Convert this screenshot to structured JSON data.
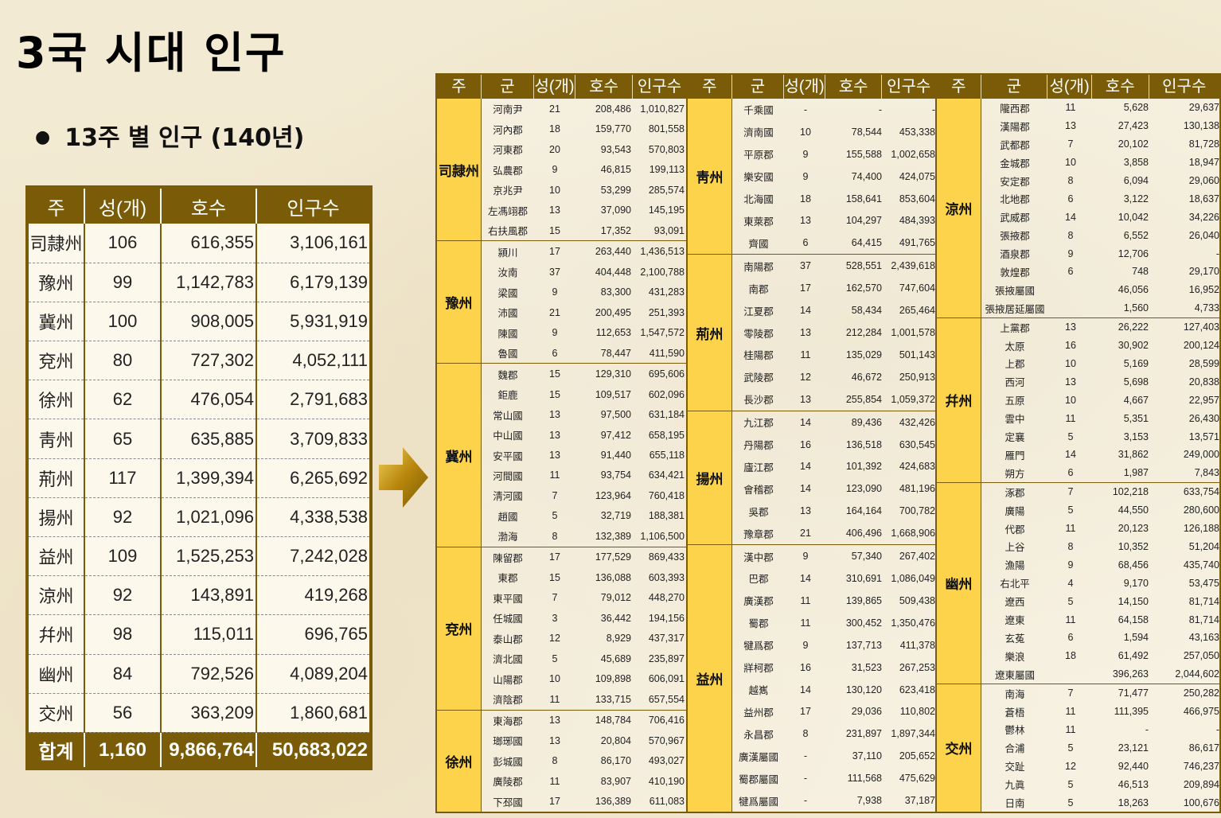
{
  "title": "3국 시대 인구",
  "subtitle": "13주 별 인구 (140년)",
  "summary": {
    "headers": [
      "주",
      "성(개)",
      "호수",
      "인구수"
    ],
    "rows": [
      [
        "司隷州",
        "106",
        "616,355",
        "3,106,161"
      ],
      [
        "豫州",
        "99",
        "1,142,783",
        "6,179,139"
      ],
      [
        "冀州",
        "100",
        "908,005",
        "5,931,919"
      ],
      [
        "兗州",
        "80",
        "727,302",
        "4,052,111"
      ],
      [
        "徐州",
        "62",
        "476,054",
        "2,791,683"
      ],
      [
        "靑州",
        "65",
        "635,885",
        "3,709,833"
      ],
      [
        "荊州",
        "117",
        "1,399,394",
        "6,265,692"
      ],
      [
        "揚州",
        "92",
        "1,021,096",
        "4,338,538"
      ],
      [
        "益州",
        "109",
        "1,525,253",
        "7,242,028"
      ],
      [
        "涼州",
        "92",
        "143,891",
        "419,268"
      ],
      [
        "幷州",
        "98",
        "115,011",
        "696,765"
      ],
      [
        "幽州",
        "84",
        "792,526",
        "4,089,204"
      ],
      [
        "交州",
        "56",
        "363,209",
        "1,860,681"
      ]
    ],
    "total": [
      "합계",
      "1,160",
      "9,866,764",
      "50,683,022"
    ]
  },
  "detail": {
    "headers": [
      "주",
      "군",
      "성(개)",
      "호수",
      "인구수"
    ],
    "columns": [
      [
        {
          "name": "司隷州",
          "rows": [
            [
              "河南尹",
              "21",
              "208,486",
              "1,010,827"
            ],
            [
              "河內郡",
              "18",
              "159,770",
              "801,558"
            ],
            [
              "河東郡",
              "20",
              "93,543",
              "570,803"
            ],
            [
              "弘農郡",
              "9",
              "46,815",
              "199,113"
            ],
            [
              "京兆尹",
              "10",
              "53,299",
              "285,574"
            ],
            [
              "左馮翊郡",
              "13",
              "37,090",
              "145,195"
            ],
            [
              "右扶風郡",
              "15",
              "17,352",
              "93,091"
            ]
          ]
        },
        {
          "name": "豫州",
          "rows": [
            [
              "潁川",
              "17",
              "263,440",
              "1,436,513"
            ],
            [
              "汝南",
              "37",
              "404,448",
              "2,100,788"
            ],
            [
              "梁國",
              "9",
              "83,300",
              "431,283"
            ],
            [
              "沛國",
              "21",
              "200,495",
              "251,393"
            ],
            [
              "陳國",
              "9",
              "112,653",
              "1,547,572"
            ],
            [
              "魯國",
              "6",
              "78,447",
              "411,590"
            ]
          ]
        },
        {
          "name": "冀州",
          "rows": [
            [
              "魏郡",
              "15",
              "129,310",
              "695,606"
            ],
            [
              "鉅鹿",
              "15",
              "109,517",
              "602,096"
            ],
            [
              "常山國",
              "13",
              "97,500",
              "631,184"
            ],
            [
              "中山國",
              "13",
              "97,412",
              "658,195"
            ],
            [
              "安平國",
              "13",
              "91,440",
              "655,118"
            ],
            [
              "河間國",
              "11",
              "93,754",
              "634,421"
            ],
            [
              "淸河國",
              "7",
              "123,964",
              "760,418"
            ],
            [
              "趙國",
              "5",
              "32,719",
              "188,381"
            ],
            [
              "渤海",
              "8",
              "132,389",
              "1,106,500"
            ]
          ]
        },
        {
          "name": "兗州",
          "rows": [
            [
              "陳留郡",
              "17",
              "177,529",
              "869,433"
            ],
            [
              "東郡",
              "15",
              "136,088",
              "603,393"
            ],
            [
              "東平國",
              "7",
              "79,012",
              "448,270"
            ],
            [
              "任城國",
              "3",
              "36,442",
              "194,156"
            ],
            [
              "泰山郡",
              "12",
              "8,929",
              "437,317"
            ],
            [
              "濟北國",
              "5",
              "45,689",
              "235,897"
            ],
            [
              "山陽郡",
              "10",
              "109,898",
              "606,091"
            ],
            [
              "濟陰郡",
              "11",
              "133,715",
              "657,554"
            ]
          ]
        },
        {
          "name": "徐州",
          "rows": [
            [
              "東海郡",
              "13",
              "148,784",
              "706,416"
            ],
            [
              "瑯琊國",
              "13",
              "20,804",
              "570,967"
            ],
            [
              "彭城國",
              "8",
              "86,170",
              "493,027"
            ],
            [
              "廣陵郡",
              "11",
              "83,907",
              "410,190"
            ],
            [
              "下邳國",
              "17",
              "136,389",
              "611,083"
            ]
          ]
        }
      ],
      [
        {
          "name": "靑州",
          "rows": [
            [
              "千乘國",
              "-",
              "-",
              "-"
            ],
            [
              "濟南國",
              "10",
              "78,544",
              "453,338"
            ],
            [
              "平原郡",
              "9",
              "155,588",
              "1,002,658"
            ],
            [
              "樂安國",
              "9",
              "74,400",
              "424,075"
            ],
            [
              "北海國",
              "18",
              "158,641",
              "853,604"
            ],
            [
              "東萊郡",
              "13",
              "104,297",
              "484,393"
            ],
            [
              "齊國",
              "6",
              "64,415",
              "491,765"
            ]
          ]
        },
        {
          "name": "荊州",
          "rows": [
            [
              "南陽郡",
              "37",
              "528,551",
              "2,439,618"
            ],
            [
              "南郡",
              "17",
              "162,570",
              "747,604"
            ],
            [
              "江夏郡",
              "14",
              "58,434",
              "265,464"
            ],
            [
              "零陵郡",
              "13",
              "212,284",
              "1,001,578"
            ],
            [
              "桂陽郡",
              "11",
              "135,029",
              "501,143"
            ],
            [
              "武陵郡",
              "12",
              "46,672",
              "250,913"
            ],
            [
              "長沙郡",
              "13",
              "255,854",
              "1,059,372"
            ]
          ]
        },
        {
          "name": "揚州",
          "rows": [
            [
              "九江郡",
              "14",
              "89,436",
              "432,426"
            ],
            [
              "丹陽郡",
              "16",
              "136,518",
              "630,545"
            ],
            [
              "廬江郡",
              "14",
              "101,392",
              "424,683"
            ],
            [
              "會稽郡",
              "14",
              "123,090",
              "481,196"
            ],
            [
              "吳郡",
              "13",
              "164,164",
              "700,782"
            ],
            [
              "豫章郡",
              "21",
              "406,496",
              "1,668,906"
            ]
          ]
        },
        {
          "name": "益州",
          "rows": [
            [
              "漢中郡",
              "9",
              "57,340",
              "267,402"
            ],
            [
              "巴郡",
              "14",
              "310,691",
              "1,086,049"
            ],
            [
              "廣漢郡",
              "11",
              "139,865",
              "509,438"
            ],
            [
              "蜀郡",
              "11",
              "300,452",
              "1,350,476"
            ],
            [
              "犍爲郡",
              "9",
              "137,713",
              "411,378"
            ],
            [
              "牂柯郡",
              "16",
              "31,523",
              "267,253"
            ],
            [
              "越嶲",
              "14",
              "130,120",
              "623,418"
            ],
            [
              "益州郡",
              "17",
              "29,036",
              "110,802"
            ],
            [
              "永昌郡",
              "8",
              "231,897",
              "1,897,344"
            ],
            [
              "廣漢屬國",
              "-",
              "37,110",
              "205,652"
            ],
            [
              "蜀郡屬國",
              "-",
              "111,568",
              "475,629"
            ],
            [
              "犍爲屬國",
              "-",
              "7,938",
              "37,187"
            ]
          ]
        }
      ],
      [
        {
          "name": "涼州",
          "rows": [
            [
              "隴西郡",
              "11",
              "5,628",
              "29,637"
            ],
            [
              "漢陽郡",
              "13",
              "27,423",
              "130,138"
            ],
            [
              "武都郡",
              "7",
              "20,102",
              "81,728"
            ],
            [
              "金城郡",
              "10",
              "3,858",
              "18,947"
            ],
            [
              "安定郡",
              "8",
              "6,094",
              "29,060"
            ],
            [
              "北地郡",
              "6",
              "3,122",
              "18,637"
            ],
            [
              "武威郡",
              "14",
              "10,042",
              "34,226"
            ],
            [
              "張掖郡",
              "8",
              "6,552",
              "26,040"
            ],
            [
              "酒泉郡",
              "9",
              "12,706",
              "-"
            ],
            [
              "敦煌郡",
              "6",
              "748",
              "29,170"
            ],
            [
              "張掖屬國",
              "",
              "46,056",
              "16,952"
            ],
            [
              "張掖居延屬國",
              "",
              "1,560",
              "4,733"
            ]
          ]
        },
        {
          "name": "幷州",
          "rows": [
            [
              "上黨郡",
              "13",
              "26,222",
              "127,403"
            ],
            [
              "太原",
              "16",
              "30,902",
              "200,124"
            ],
            [
              "上郡",
              "10",
              "5,169",
              "28,599"
            ],
            [
              "西河",
              "13",
              "5,698",
              "20,838"
            ],
            [
              "五原",
              "10",
              "4,667",
              "22,957"
            ],
            [
              "雲中",
              "11",
              "5,351",
              "26,430"
            ],
            [
              "定襄",
              "5",
              "3,153",
              "13,571"
            ],
            [
              "雁門",
              "14",
              "31,862",
              "249,000"
            ],
            [
              "朔方",
              "6",
              "1,987",
              "7,843"
            ]
          ]
        },
        {
          "name": "幽州",
          "rows": [
            [
              "涿郡",
              "7",
              "102,218",
              "633,754"
            ],
            [
              "廣陽",
              "5",
              "44,550",
              "280,600"
            ],
            [
              "代郡",
              "11",
              "20,123",
              "126,188"
            ],
            [
              "上谷",
              "8",
              "10,352",
              "51,204"
            ],
            [
              "漁陽",
              "9",
              "68,456",
              "435,740"
            ],
            [
              "右北平",
              "4",
              "9,170",
              "53,475"
            ],
            [
              "遼西",
              "5",
              "14,150",
              "81,714"
            ],
            [
              "遼東",
              "11",
              "64,158",
              "81,714"
            ],
            [
              "玄菟",
              "6",
              "1,594",
              "43,163"
            ],
            [
              "樂浪",
              "18",
              "61,492",
              "257,050"
            ],
            [
              "遼東屬國",
              "",
              "396,263",
              "2,044,602"
            ]
          ]
        },
        {
          "name": "交州",
          "rows": [
            [
              "南海",
              "7",
              "71,477",
              "250,282"
            ],
            [
              "蒼梧",
              "11",
              "111,395",
              "466,975"
            ],
            [
              "鬱林",
              "11",
              "-",
              "-"
            ],
            [
              "合浦",
              "5",
              "23,121",
              "86,617"
            ],
            [
              "交趾",
              "12",
              "92,440",
              "746,237"
            ],
            [
              "九眞",
              "5",
              "46,513",
              "209,894"
            ],
            [
              "日南",
              "5",
              "18,263",
              "100,676"
            ]
          ]
        }
      ]
    ]
  }
}
